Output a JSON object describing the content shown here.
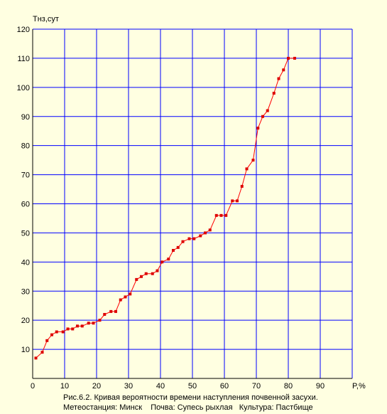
{
  "chart_data": {
    "type": "line",
    "ylabel": "Тнз,сут",
    "xlabel": "P,%",
    "xlim": [
      0,
      100
    ],
    "ylim": [
      0,
      120
    ],
    "x_ticks": [
      "0",
      "10",
      "20",
      "30",
      "40",
      "50",
      "60",
      "70",
      "80",
      "90"
    ],
    "y_ticks": [
      "10",
      "20",
      "30",
      "40",
      "50",
      "60",
      "70",
      "80",
      "90",
      "100",
      "110",
      "120"
    ],
    "grid": true,
    "colors": {
      "line": "#ff0000",
      "marker": "#dd0000",
      "grid": "#0000ff",
      "background": "#ffffe1"
    },
    "series": [
      {
        "x": [
          1,
          3,
          4.5,
          6,
          7.5,
          9.5,
          11,
          12.5,
          14,
          15.5,
          17.5,
          19,
          21,
          22.5,
          24.5,
          26,
          27.5,
          29,
          30.5,
          32.5,
          34,
          35.5,
          37.5,
          39,
          40.5,
          42.5,
          44,
          45.5,
          47,
          49,
          50.5,
          52.5,
          54,
          55.5,
          57.5,
          59,
          60.5,
          62.5,
          64,
          65.5,
          67,
          69,
          70.5,
          72,
          73.5,
          75.5,
          77,
          78.5,
          80,
          82
        ],
        "y": [
          7,
          9,
          13,
          15,
          16,
          16,
          17,
          17,
          18,
          18,
          19,
          19,
          20,
          22,
          23,
          23,
          27,
          28,
          29,
          34,
          35,
          36,
          36,
          37,
          40,
          41,
          44,
          45,
          47,
          48,
          48,
          49,
          50,
          51,
          56,
          56,
          56,
          61,
          61,
          66,
          72,
          75,
          86,
          90,
          92,
          98,
          103,
          106,
          110,
          110
        ]
      }
    ]
  },
  "caption": {
    "line1": "Рис.6.2. Кривая вероятности времени наступления почвенной засухи.",
    "line2_station": "Метеостанция: Минск",
    "line2_soil": "Почва: Супесь рыхлая",
    "line2_crop": "Культура: Пастбище"
  }
}
